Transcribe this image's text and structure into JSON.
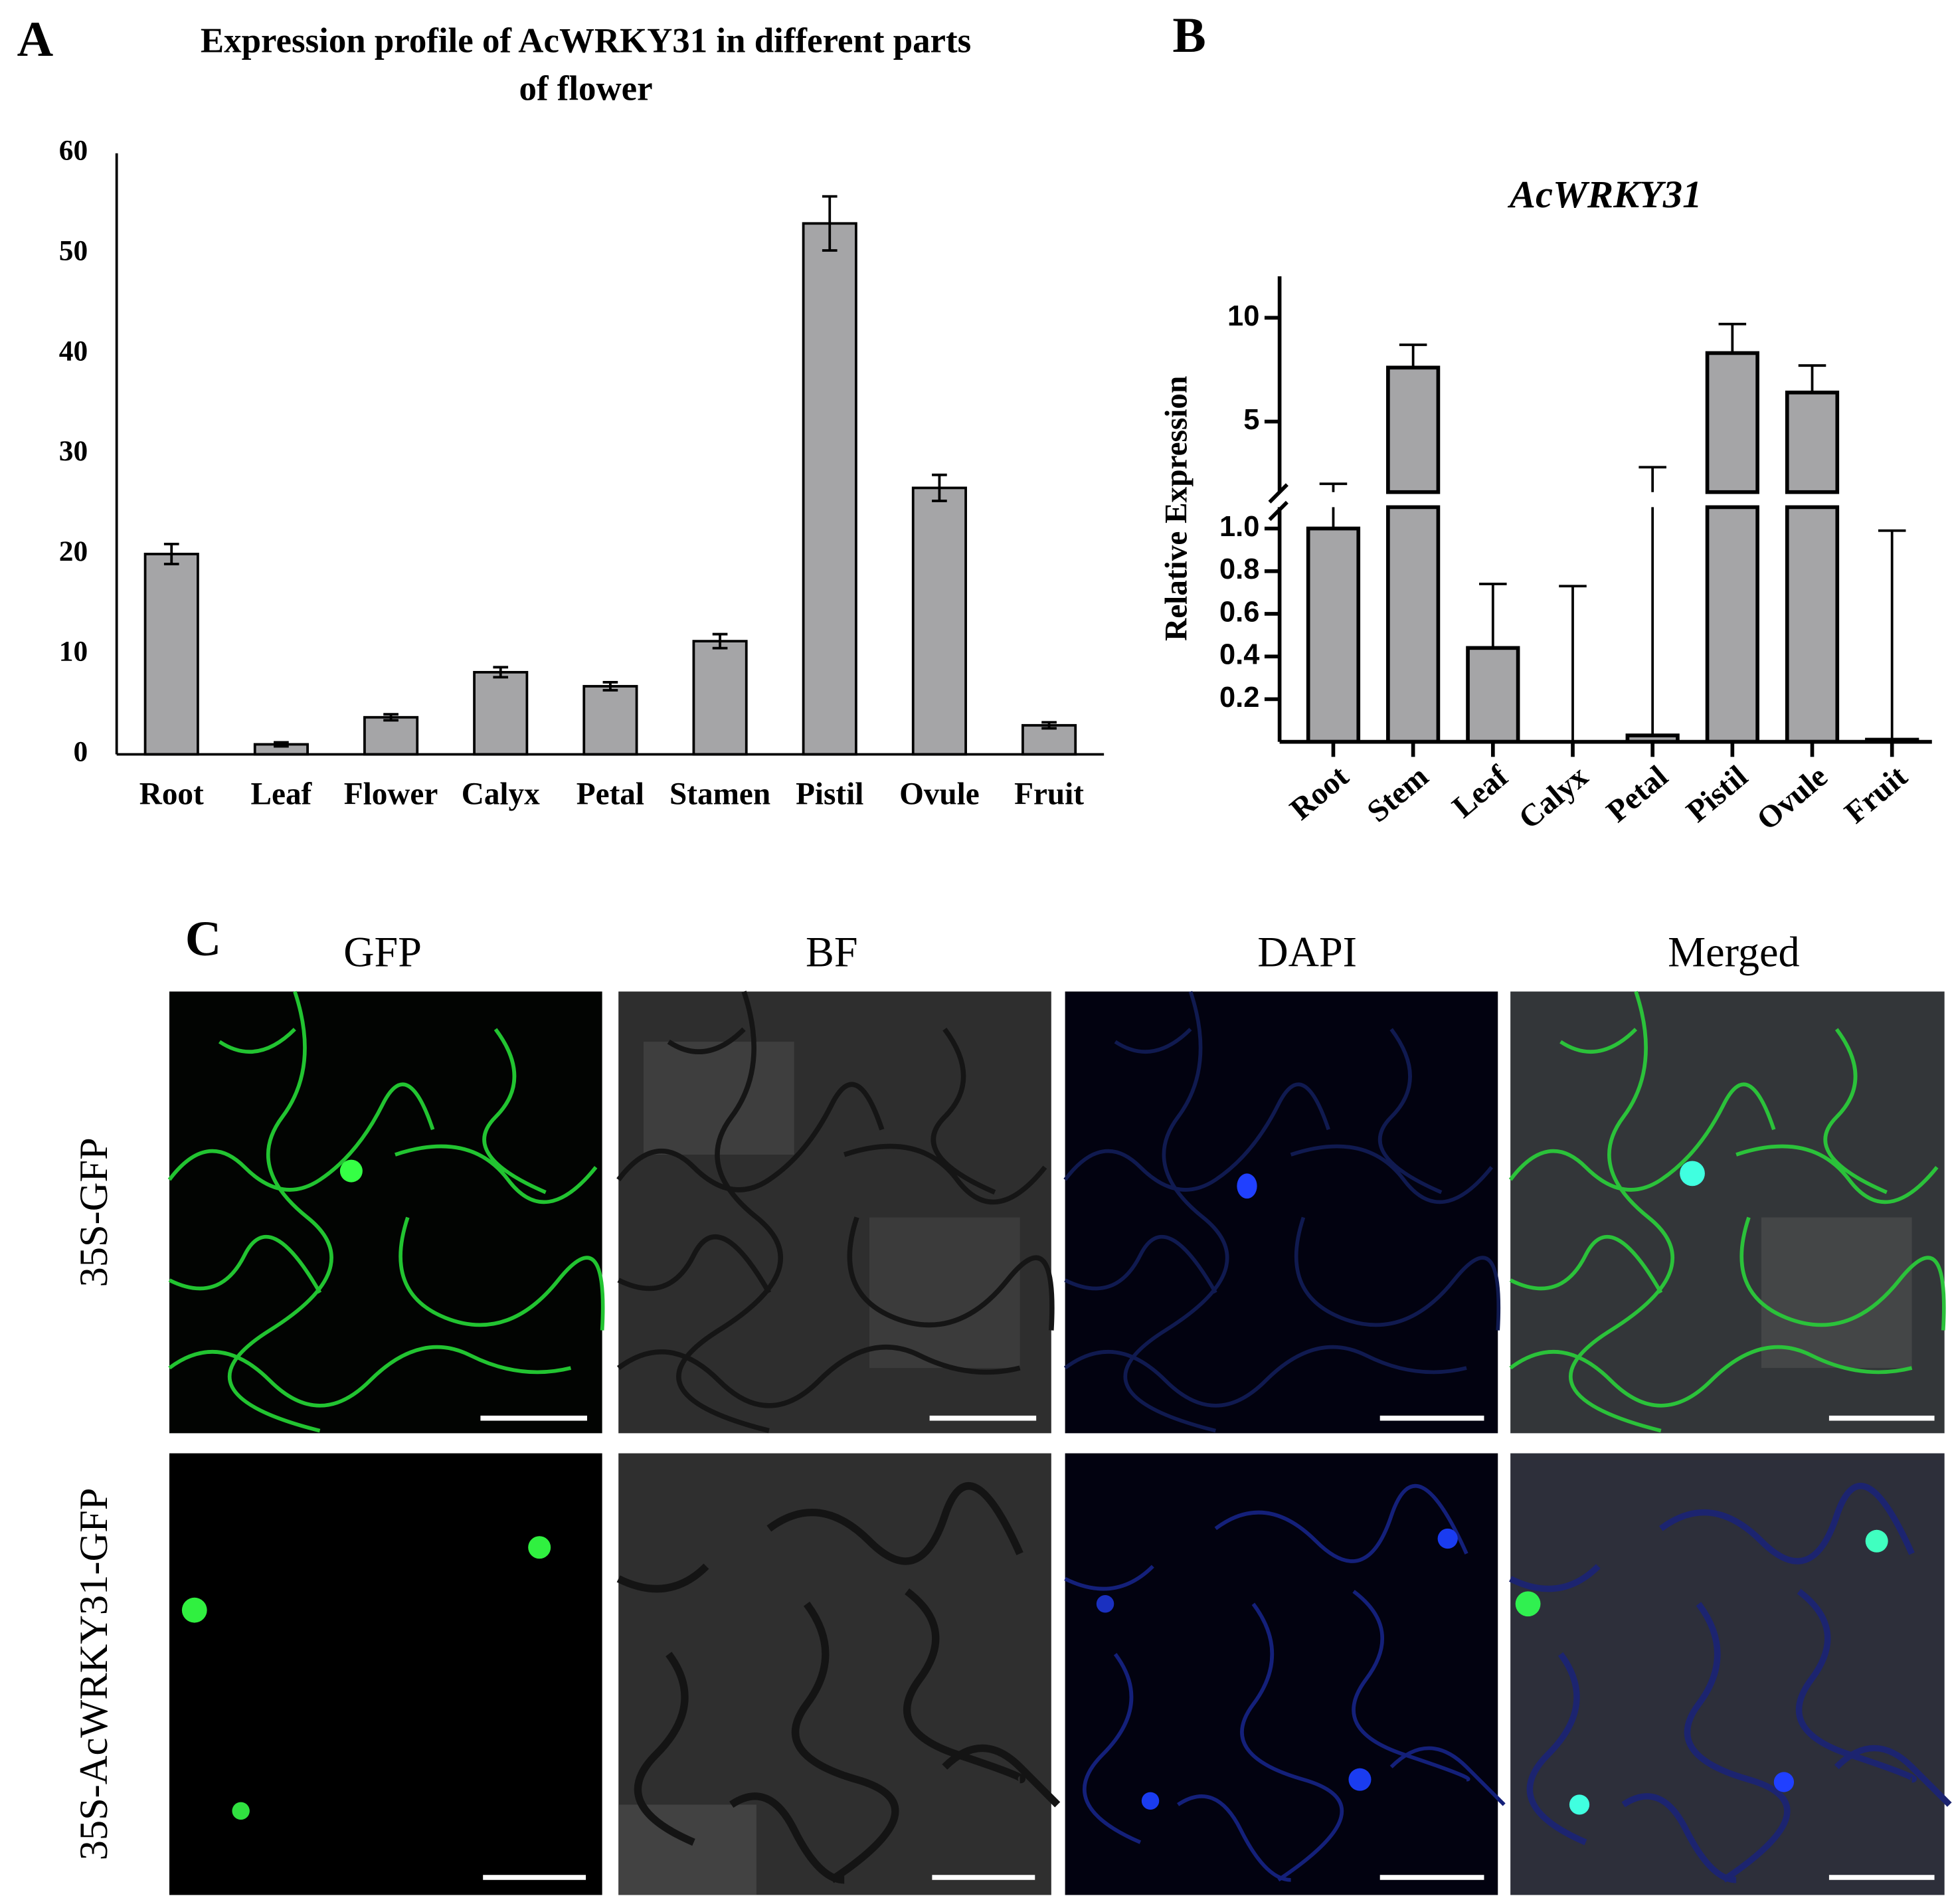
{
  "panels": {
    "a": "A",
    "b": "B",
    "c": "C"
  },
  "chart_data": [
    {
      "type": "bar",
      "title": [
        "Expression profile of AcWRKY31 in different parts",
        "of flower"
      ],
      "categories": [
        "Root",
        "Leaf",
        "Flower",
        "Calyx",
        "Petal",
        "Stamen",
        "Pistil",
        "Ovule",
        "Fruit"
      ],
      "values": [
        20,
        1,
        3.7,
        8.2,
        6.8,
        11.3,
        53,
        26.6,
        2.9
      ],
      "errors": [
        1,
        0.2,
        0.3,
        0.5,
        0.4,
        0.7,
        2.7,
        1.3,
        0.3
      ],
      "color": "#a5a5a7",
      "ylim": [
        0,
        60
      ],
      "yticks": [
        0,
        10,
        20,
        30,
        40,
        50,
        60
      ]
    },
    {
      "type": "bar",
      "title": "AcWRKY31",
      "ylabel": "Relative Expression",
      "categories": [
        "Root",
        "Stem",
        "Leaf",
        "Calyx",
        "Petal",
        "Pistil",
        "Ovule",
        "Fruit"
      ],
      "values": [
        1,
        7.6,
        0.44,
        0,
        0.03,
        8.3,
        6.4,
        0.01
      ],
      "errors": [
        1,
        1.1,
        0.3,
        0.73,
        2.77,
        1.4,
        1.3,
        0.98
      ],
      "color": "#a5a5a7",
      "ylim": [
        0,
        12
      ],
      "axis_break": [
        1.1,
        1.6
      ],
      "yticks": [
        0.2,
        0.4,
        0.6,
        0.8,
        {
          "value": 1,
          "label": "1.0"
        },
        5,
        10
      ]
    }
  ],
  "microscopy": {
    "columns": [
      "GFP",
      "BF",
      "DAPI",
      "Merged"
    ],
    "rows": [
      "35S-GFP",
      "35S-AcWRKY31-GFP"
    ]
  }
}
